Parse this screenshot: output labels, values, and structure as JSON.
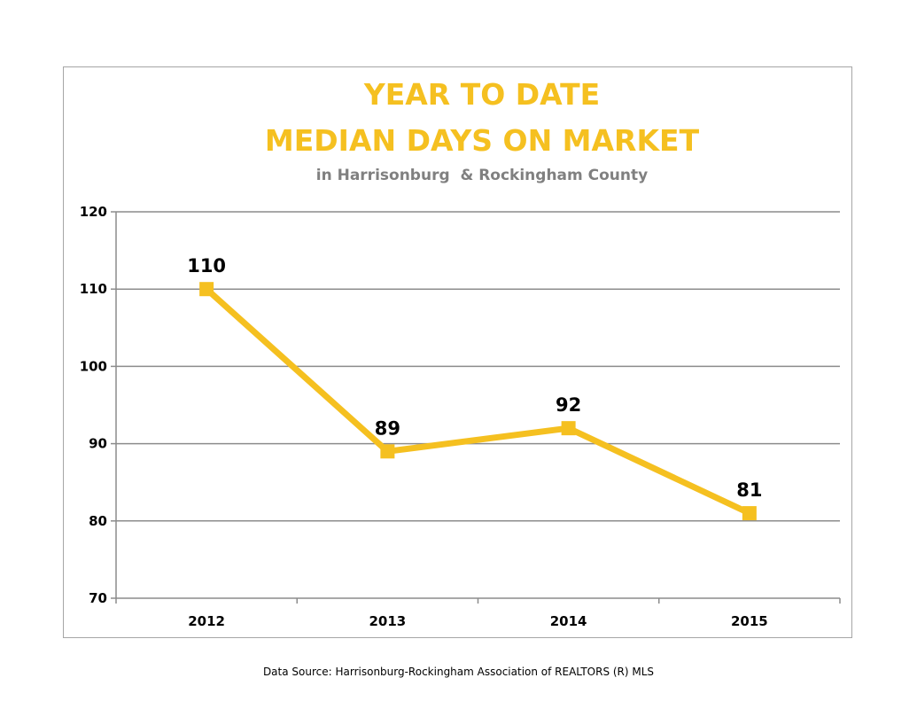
{
  "chart_data": {
    "type": "line",
    "title": [
      "YEAR TO DATE",
      "MEDIAN DAYS ON MARKET"
    ],
    "subtitle": "in Harrisonburg  & Rockingham County",
    "categories": [
      "2012",
      "2013",
      "2014",
      "2015"
    ],
    "series": [
      {
        "values": [
          110,
          89,
          92,
          81
        ],
        "data_labels": [
          "110",
          "89",
          "92",
          "81"
        ],
        "color": "#f5c020",
        "marker": "square"
      }
    ],
    "y_ticks": [
      70,
      80,
      90,
      100,
      110,
      120
    ],
    "ylim": [
      70,
      120
    ],
    "xlabel": "",
    "ylabel": "",
    "grid": true,
    "legend": "none"
  },
  "colors": {
    "accent": "#f5c020",
    "subtitle": "#808080",
    "grid": "#8c8c8c",
    "frame": "#a6a6a6"
  },
  "footer": {
    "source": "Data Source: Harrisonburg-Rockingham Association of REALTORS (R) MLS"
  }
}
